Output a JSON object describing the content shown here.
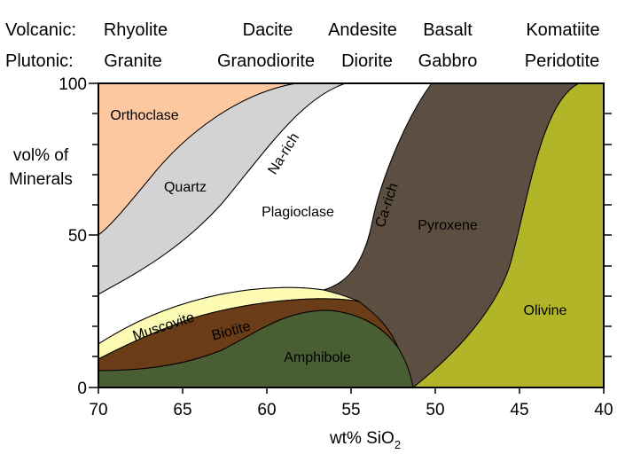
{
  "rock_header": {
    "volcanic_label": "Volcanic:",
    "plutonic_label": "Plutonic:",
    "volcanic": [
      "Rhyolite",
      "Dacite",
      "Andesite",
      "Basalt",
      "Komatiite"
    ],
    "plutonic": [
      "Granite",
      "Granodiorite",
      "Diorite",
      "Gabbro",
      "Peridotite"
    ]
  },
  "axes": {
    "x_title": "wt% SiO",
    "x_title_subscript": "2",
    "y_title_line1": "vol% of",
    "y_title_line2": "Minerals",
    "x_ticks": [
      "70",
      "65",
      "60",
      "55",
      "50",
      "45",
      "40"
    ],
    "y_ticks": [
      "0",
      "50",
      "100"
    ]
  },
  "minerals": {
    "orthoclase": {
      "label": "Orthoclase",
      "color": "#fdc8a0"
    },
    "quartz": {
      "label": "Quartz",
      "color": "#d3d3d3"
    },
    "plagioclase": {
      "label": "Plagioclase",
      "color": "#ffffff"
    },
    "na_rich": {
      "label": "Na-rich"
    },
    "ca_rich": {
      "label": "Ca-rich"
    },
    "pyroxene": {
      "label": "Pyroxene",
      "color": "#5c4e40"
    },
    "muscovite": {
      "label": "Muscovite",
      "color": "#fdfbb3"
    },
    "biotite": {
      "label": "Biotite",
      "color": "#6a3c17"
    },
    "amphibole": {
      "label": "Amphibole",
      "color": "#4a5e33"
    },
    "olivine": {
      "label": "Olivine",
      "color": "#b1b527"
    }
  }
}
